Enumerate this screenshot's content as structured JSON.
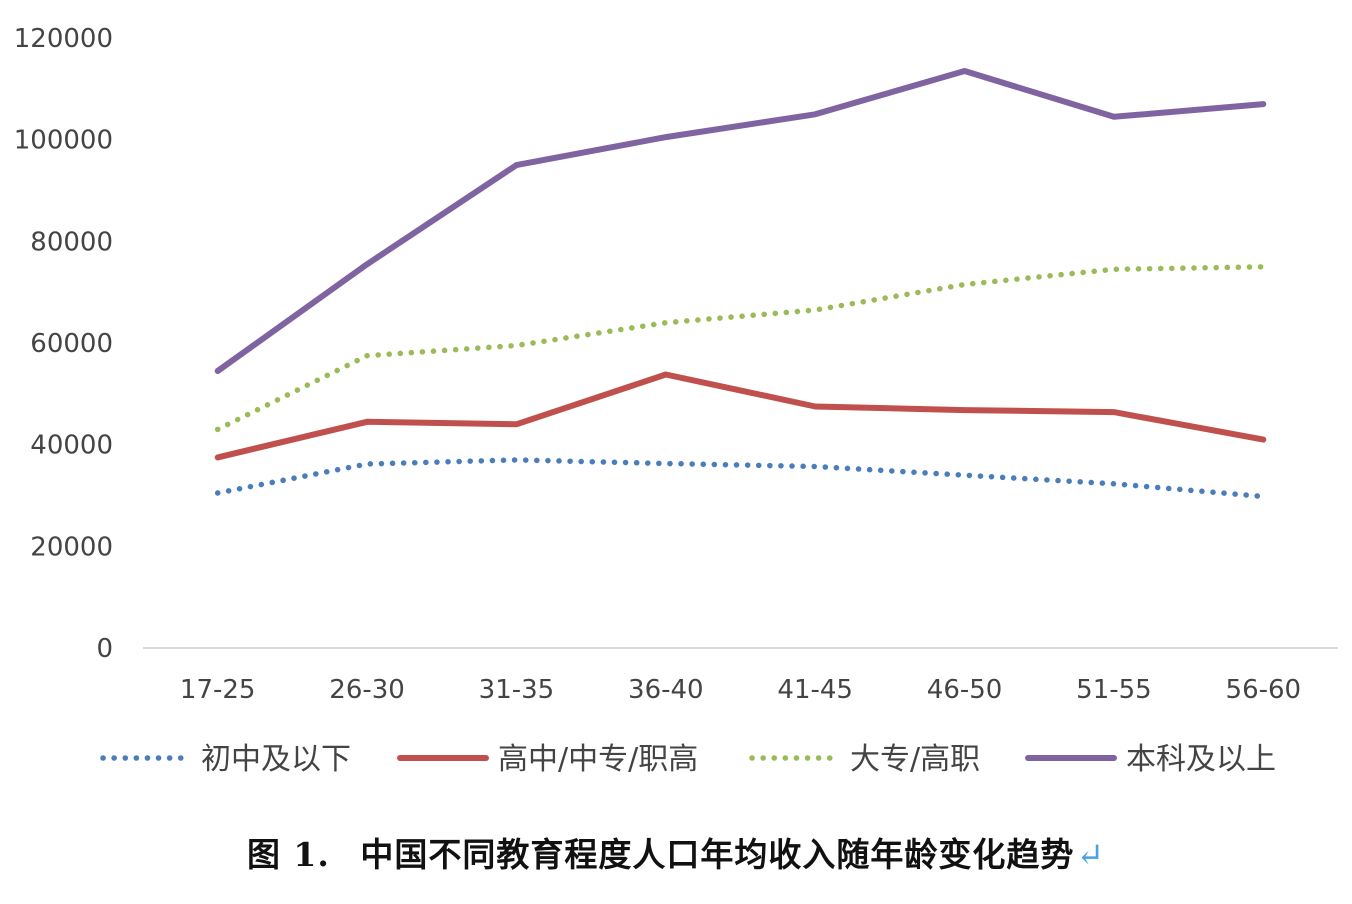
{
  "chart_data": {
    "type": "line",
    "title": "",
    "xlabel": "",
    "ylabel": "",
    "categories": [
      "17-25",
      "26-30",
      "31-35",
      "36-40",
      "41-45",
      "46-50",
      "51-55",
      "56-60"
    ],
    "ylim": [
      0,
      120000
    ],
    "yticks": [
      0,
      20000,
      40000,
      60000,
      80000,
      100000,
      120000
    ],
    "grid": false,
    "legend_position": "bottom",
    "series": [
      {
        "name": "初中及以下",
        "values": [
          30500,
          36200,
          37000,
          36300,
          35700,
          34000,
          32300,
          29800
        ],
        "color": "#4a7ebb",
        "style": "dotted"
      },
      {
        "name": "高中/中专/职高",
        "values": [
          37500,
          44500,
          44000,
          53800,
          47500,
          46800,
          46400,
          41000
        ],
        "color": "#c0504d",
        "style": "solid"
      },
      {
        "name": "大专/高职",
        "values": [
          43000,
          57500,
          59500,
          64000,
          66500,
          71500,
          74500,
          75000
        ],
        "color": "#9bbb59",
        "style": "dotted"
      },
      {
        "name": "本科及以上",
        "values": [
          54500,
          75500,
          95000,
          100500,
          105000,
          113500,
          104500,
          107000
        ],
        "color": "#8064a2",
        "style": "solid"
      }
    ]
  },
  "caption": {
    "figure_label": "图 1.",
    "text": "中国不同教育程度人口年均收入随年龄变化趋势",
    "mark": "↵"
  }
}
